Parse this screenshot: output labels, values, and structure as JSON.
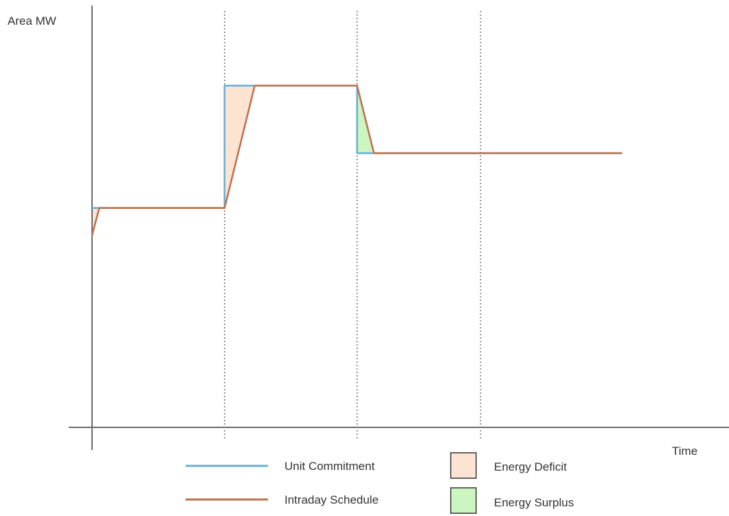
{
  "chart_data": {
    "type": "line",
    "ylabel": "Area MW",
    "xlabel": "Time",
    "xlim": [
      0,
      10.7
    ],
    "ylim": [
      0,
      10
    ],
    "interval_boundaries": [
      2.2,
      4.4,
      6.45
    ],
    "series": [
      {
        "name": "Unit Commitment",
        "color": "#6baed6",
        "x": [
          0,
          0.12,
          2.2,
          2.2,
          2.7,
          4.4,
          4.4,
          4.68,
          8.8
        ],
        "y": [
          5.2,
          5.2,
          5.2,
          8.1,
          8.1,
          8.1,
          6.5,
          6.5,
          6.5
        ]
      },
      {
        "name": "Intraday Schedule",
        "color": "#c0714f",
        "x": [
          0,
          0.12,
          2.2,
          2.7,
          4.4,
          4.68,
          8.8
        ],
        "y": [
          4.55,
          5.2,
          5.2,
          8.1,
          8.1,
          6.5,
          6.5
        ]
      }
    ],
    "shaded_regions": [
      {
        "label": "Energy Deficit",
        "color": "#fde4d2",
        "polygon": [
          [
            0,
            5.2
          ],
          [
            0.12,
            5.2
          ],
          [
            0,
            4.55
          ]
        ]
      },
      {
        "label": "Energy Deficit",
        "color": "#fde4d2",
        "polygon": [
          [
            2.2,
            5.2
          ],
          [
            2.2,
            8.1
          ],
          [
            2.7,
            8.1
          ]
        ]
      },
      {
        "label": "Energy Surplus",
        "color": "#ccf5c0",
        "polygon": [
          [
            4.4,
            8.1
          ],
          [
            4.4,
            6.5
          ],
          [
            4.68,
            6.5
          ]
        ]
      }
    ],
    "legend": {
      "placement": "bottom",
      "lines": [
        {
          "label": "Unit Commitment",
          "color": "#6baed6"
        },
        {
          "label": "Intraday Schedule",
          "color": "#c0714f"
        }
      ],
      "boxes": [
        {
          "label": "Energy Deficit",
          "color": "#fde4d2"
        },
        {
          "label": "Energy Surplus",
          "color": "#ccf5c0"
        }
      ]
    },
    "grid": false
  }
}
